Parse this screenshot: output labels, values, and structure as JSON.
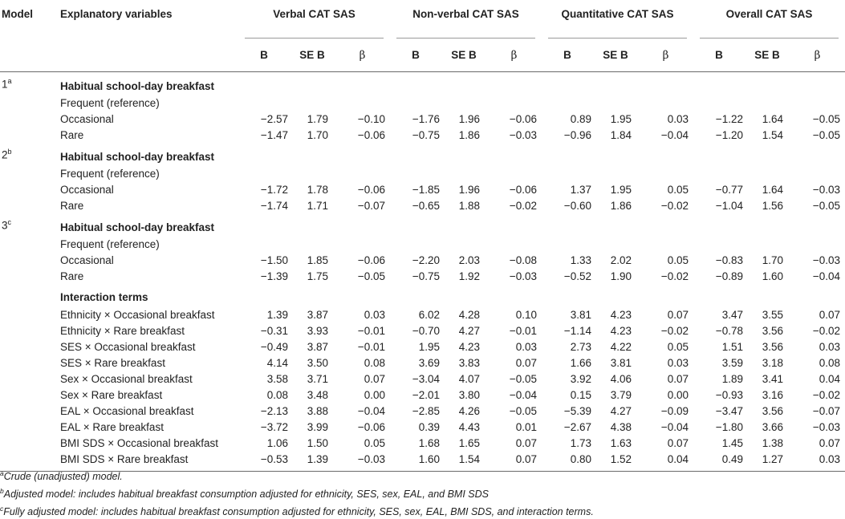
{
  "header": {
    "model": "Model",
    "explanatory": "Explanatory variables",
    "groups": [
      "Verbal CAT SAS",
      "Non-verbal CAT SAS",
      "Quantitative CAT SAS",
      "Overall CAT SAS"
    ],
    "sub": {
      "B": "B",
      "SE": "SE B",
      "beta": "β"
    }
  },
  "models": [
    {
      "label": "1",
      "sup": "a",
      "heading": "Habitual school-day breakfast",
      "reference": "Frequent (reference)",
      "rows": [
        {
          "label": "Occasional",
          "values": [
            "−2.57",
            "1.79",
            "−0.10",
            "−1.76",
            "1.96",
            "−0.06",
            "0.89",
            "1.95",
            "0.03",
            "−1.22",
            "1.64",
            "−0.05"
          ]
        },
        {
          "label": "Rare",
          "values": [
            "−1.47",
            "1.70",
            "−0.06",
            "−0.75",
            "1.86",
            "−0.03",
            "−0.96",
            "1.84",
            "−0.04",
            "−1.20",
            "1.54",
            "−0.05"
          ]
        }
      ]
    },
    {
      "label": "2",
      "sup": "b",
      "heading": "Habitual school-day breakfast",
      "reference": "Frequent (reference)",
      "rows": [
        {
          "label": "Occasional",
          "values": [
            "−1.72",
            "1.78",
            "−0.06",
            "−1.85",
            "1.96",
            "−0.06",
            "1.37",
            "1.95",
            "0.05",
            "−0.77",
            "1.64",
            "−0.03"
          ]
        },
        {
          "label": "Rare",
          "values": [
            "−1.74",
            "1.71",
            "−0.07",
            "−0.65",
            "1.88",
            "−0.02",
            "−0.60",
            "1.86",
            "−0.02",
            "−1.04",
            "1.56",
            "−0.05"
          ]
        }
      ]
    },
    {
      "label": "3",
      "sup": "c",
      "heading": "Habitual school-day breakfast",
      "reference": "Frequent (reference)",
      "rows": [
        {
          "label": "Occasional",
          "values": [
            "−1.50",
            "1.85",
            "−0.06",
            "−2.20",
            "2.03",
            "−0.08",
            "1.33",
            "2.02",
            "0.05",
            "−0.83",
            "1.70",
            "−0.03"
          ]
        },
        {
          "label": "Rare",
          "values": [
            "−1.39",
            "1.75",
            "−0.05",
            "−0.75",
            "1.92",
            "−0.03",
            "−0.52",
            "1.90",
            "−0.02",
            "−0.89",
            "1.60",
            "−0.04"
          ]
        }
      ]
    }
  ],
  "interaction": {
    "heading": "Interaction terms",
    "rows": [
      {
        "label": "Ethnicity × Occasional breakfast",
        "values": [
          "1.39",
          "3.87",
          "0.03",
          "6.02",
          "4.28",
          "0.10",
          "3.81",
          "4.23",
          "0.07",
          "3.47",
          "3.55",
          "0.07"
        ]
      },
      {
        "label": "Ethnicity × Rare breakfast",
        "values": [
          "−0.31",
          "3.93",
          "−0.01",
          "−0.70",
          "4.27",
          "−0.01",
          "−1.14",
          "4.23",
          "−0.02",
          "−0.78",
          "3.56",
          "−0.02"
        ]
      },
      {
        "label": "SES × Occasional breakfast",
        "values": [
          "−0.49",
          "3.87",
          "−0.01",
          "1.95",
          "4.23",
          "0.03",
          "2.73",
          "4.22",
          "0.05",
          "1.51",
          "3.56",
          "0.03"
        ]
      },
      {
        "label": "SES × Rare breakfast",
        "values": [
          "4.14",
          "3.50",
          "0.08",
          "3.69",
          "3.83",
          "0.07",
          "1.66",
          "3.81",
          "0.03",
          "3.59",
          "3.18",
          "0.08"
        ]
      },
      {
        "label": "Sex × Occasional breakfast",
        "values": [
          "3.58",
          "3.71",
          "0.07",
          "−3.04",
          "4.07",
          "−0.05",
          "3.92",
          "4.06",
          "0.07",
          "1.89",
          "3.41",
          "0.04"
        ]
      },
      {
        "label": "Sex × Rare breakfast",
        "values": [
          "0.08",
          "3.48",
          "0.00",
          "−2.01",
          "3.80",
          "−0.04",
          "0.15",
          "3.79",
          "0.00",
          "−0.93",
          "3.16",
          "−0.02"
        ]
      },
      {
        "label": "EAL × Occasional breakfast",
        "values": [
          "−2.13",
          "3.88",
          "−0.04",
          "−2.85",
          "4.26",
          "−0.05",
          "−5.39",
          "4.27",
          "−0.09",
          "−3.47",
          "3.56",
          "−0.07"
        ]
      },
      {
        "label": "EAL × Rare breakfast",
        "values": [
          "−3.72",
          "3.99",
          "−0.06",
          "0.39",
          "4.43",
          "0.01",
          "−2.67",
          "4.38",
          "−0.04",
          "−1.80",
          "3.66",
          "−0.03"
        ]
      },
      {
        "label": "BMI SDS × Occasional breakfast",
        "values": [
          "1.06",
          "1.50",
          "0.05",
          "1.68",
          "1.65",
          "0.07",
          "1.73",
          "1.63",
          "0.07",
          "1.45",
          "1.38",
          "0.07"
        ]
      },
      {
        "label": "BMI SDS × Rare breakfast",
        "values": [
          "−0.53",
          "1.39",
          "−0.03",
          "1.60",
          "1.54",
          "0.07",
          "0.80",
          "1.52",
          "0.04",
          "0.49",
          "1.27",
          "0.03"
        ]
      }
    ]
  },
  "footnotes": [
    {
      "sup": "a",
      "text": "Crude (unadjusted) model."
    },
    {
      "sup": "b",
      "text": "Adjusted model: includes habitual breakfast consumption adjusted for ethnicity, SES, sex, EAL, and BMI SDS"
    },
    {
      "sup": "c",
      "text": "Fully adjusted model: includes habitual breakfast consumption adjusted for ethnicity, SES, sex, EAL, BMI SDS, and interaction terms."
    }
  ]
}
